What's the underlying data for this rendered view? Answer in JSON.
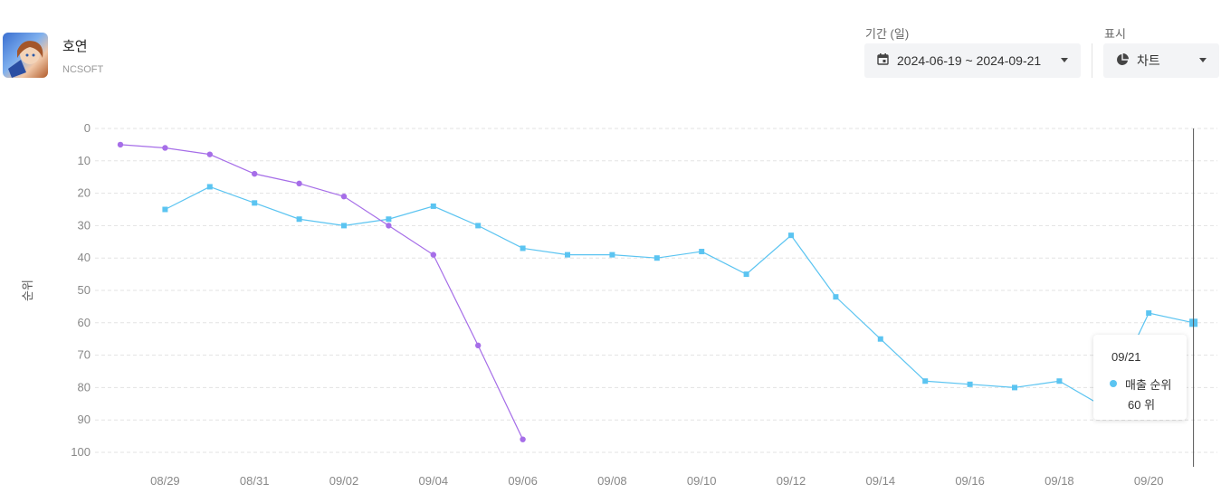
{
  "app": {
    "title": "호연",
    "publisher": "NCSOFT",
    "icon": "game-character-icon"
  },
  "controls": {
    "period_label": "기간 (일)",
    "period_value": "2024-06-19 ~ 2024-09-21",
    "period_icon": "calendar-icon",
    "display_label": "표시",
    "display_value": "차트",
    "display_icon": "pie-chart-icon"
  },
  "tooltip": {
    "date": "09/21",
    "series": "매출 순위",
    "value": "60 위"
  },
  "colors": {
    "sales_rank": "#5bc4f1",
    "other_rank": "#a66ee8",
    "grid": "#e3e3e3",
    "axis_text": "#888888",
    "crosshair": "#555555"
  },
  "chart_data": {
    "type": "line",
    "ylabel": "순위",
    "xlabel": "",
    "y_reversed": true,
    "ylim": [
      0,
      100
    ],
    "yticks": [
      0,
      10,
      20,
      30,
      40,
      50,
      60,
      70,
      80,
      90,
      100
    ],
    "x_tick_labels": [
      "08/29",
      "08/31",
      "09/02",
      "09/04",
      "09/06",
      "09/08",
      "09/10",
      "09/12",
      "09/14",
      "09/16",
      "09/18",
      "09/20"
    ],
    "x": [
      "08/28",
      "08/29",
      "08/30",
      "08/31",
      "09/01",
      "09/02",
      "09/03",
      "09/04",
      "09/05",
      "09/06",
      "09/07",
      "09/08",
      "09/09",
      "09/10",
      "09/11",
      "09/12",
      "09/13",
      "09/14",
      "09/15",
      "09/16",
      "09/17",
      "09/18",
      "09/19",
      "09/20",
      "09/21"
    ],
    "grid": true,
    "crosshair_x": "09/21",
    "series": [
      {
        "name": "매출 순위",
        "marker": "square",
        "color": "#5bc4f1",
        "values": [
          null,
          25,
          18,
          23,
          28,
          30,
          28,
          24,
          30,
          37,
          39,
          39,
          40,
          38,
          45,
          33,
          52,
          65,
          78,
          79,
          80,
          78,
          86,
          57,
          60
        ]
      },
      {
        "marker": "circle",
        "color": "#a66ee8",
        "values": [
          5,
          6,
          8,
          14,
          17,
          21,
          30,
          39,
          67,
          96,
          null,
          null,
          null,
          null,
          null,
          null,
          null,
          null,
          null,
          null,
          null,
          null,
          null,
          null,
          null
        ]
      }
    ]
  }
}
